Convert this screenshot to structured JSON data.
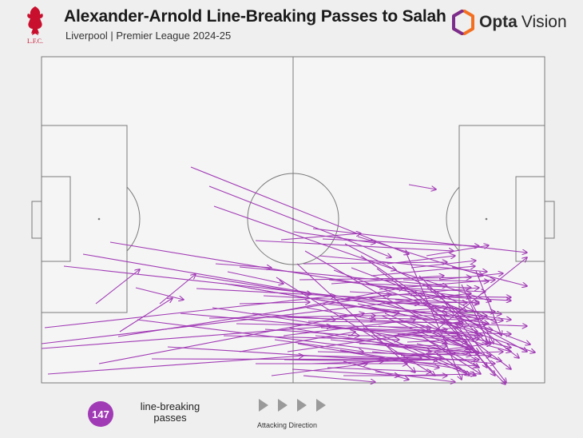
{
  "header": {
    "title": "Alexander-Arnold Line-Breaking Passes to Salah",
    "subtitle": "Liverpool | Premier League 2024-25",
    "club_logo_text": "L.F.C.",
    "brand_name_bold": "Opta",
    "brand_name_light": "Vision"
  },
  "footer": {
    "count": "147",
    "count_label": "line-breaking passes",
    "direction_label": "Attacking Direction"
  },
  "colors": {
    "pass": "#a13bb5",
    "pitch_line": "#7a7a7a",
    "pitch_bg": "#f5f5f5",
    "background": "#efefef",
    "lfc_red": "#c8102e",
    "opta_orange": "#f37021",
    "opta_purple": "#7b2d8e"
  },
  "icons": [
    "liverbird-icon",
    "opta-logo-icon",
    "arrow-right-icon"
  ]
}
